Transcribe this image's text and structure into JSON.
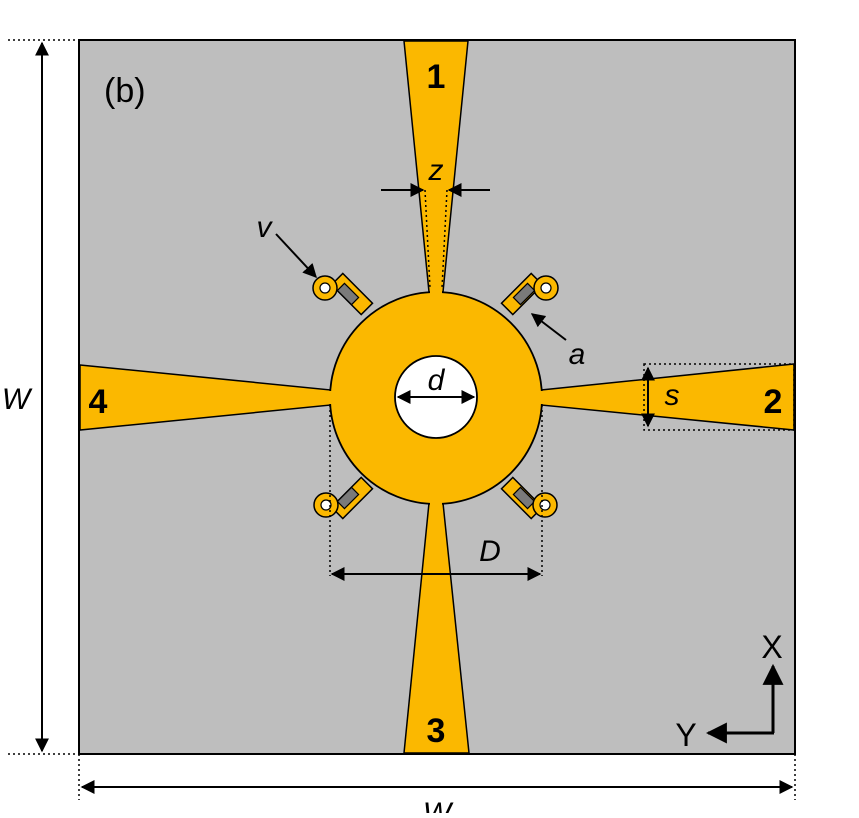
{
  "figure": {
    "panel_label": "(b)",
    "ports": {
      "port_1": "1",
      "port_2": "2",
      "port_3": "3",
      "port_4": "4"
    },
    "dimensions": {
      "z": "z",
      "v": "v",
      "a": "a",
      "d": "d",
      "s": "s",
      "D": "D",
      "W_left": "W",
      "W_bottom": "W"
    },
    "axes": {
      "x_label": "X",
      "y_label": "Y"
    }
  },
  "colors": {
    "substrate": "#bebebe",
    "metal": "#fbb800",
    "via": "#7a7a7a",
    "hole": "#ffffff",
    "line": "#000000"
  }
}
